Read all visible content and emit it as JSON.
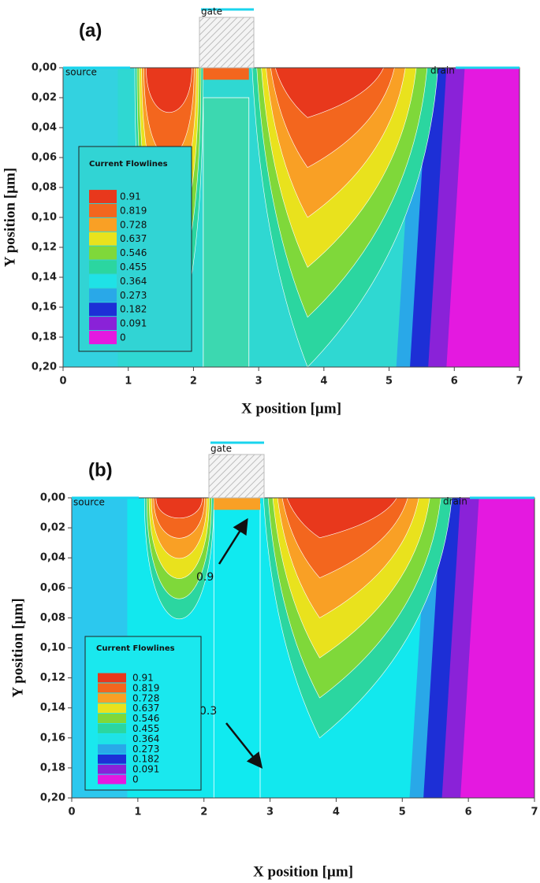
{
  "chart_data": [
    {
      "type": "contour",
      "panel_label": "(a)",
      "xlabel": "X position [µm]",
      "ylabel": "Y position [µm]",
      "xlim": [
        0,
        7
      ],
      "ylim": [
        0,
        0.2
      ],
      "y_inverted": true,
      "xticks": [
        0,
        1,
        2,
        3,
        4,
        5,
        6,
        7
      ],
      "yticks": [
        {
          "value": 0,
          "label": "0,00"
        },
        {
          "value": 0.02,
          "label": "0,02"
        },
        {
          "value": 0.04,
          "label": "0,04"
        },
        {
          "value": 0.06,
          "label": "0,06"
        },
        {
          "value": 0.08,
          "label": "0,08"
        },
        {
          "value": 0.1,
          "label": "0,10"
        },
        {
          "value": 0.12,
          "label": "0,12"
        },
        {
          "value": 0.14,
          "label": "0,14"
        },
        {
          "value": 0.16,
          "label": "0,16"
        },
        {
          "value": 0.18,
          "label": "0,18"
        },
        {
          "value": 0.2,
          "label": "0,20"
        }
      ],
      "annotations": [
        "gate",
        "source",
        "drain"
      ],
      "legend": {
        "title": "Current Flowlines",
        "levels": [
          0.91,
          0.819,
          0.728,
          0.637,
          0.546,
          0.455,
          0.364,
          0.273,
          0.182,
          0.091,
          0
        ],
        "colors": [
          "#e8381c",
          "#f3661e",
          "#f9a025",
          "#e9e21d",
          "#7fd83a",
          "#2bd6a0",
          "#1fe2e6",
          "#29a8e8",
          "#1d2fd6",
          "#8a22d8",
          "#e419e0"
        ]
      }
    },
    {
      "type": "contour",
      "panel_label": "(b)",
      "xlabel": "X position [µm]",
      "ylabel": "Y position [µm]",
      "xlim": [
        0,
        7
      ],
      "ylim": [
        0,
        0.2
      ],
      "y_inverted": true,
      "xticks": [
        0,
        1,
        2,
        3,
        4,
        5,
        6,
        7
      ],
      "yticks": [
        {
          "value": 0,
          "label": "0,00"
        },
        {
          "value": 0.02,
          "label": "0,02"
        },
        {
          "value": 0.04,
          "label": "0,04"
        },
        {
          "value": 0.06,
          "label": "0,06"
        },
        {
          "value": 0.08,
          "label": "0,08"
        },
        {
          "value": 0.1,
          "label": "0,10"
        },
        {
          "value": 0.12,
          "label": "0,12"
        },
        {
          "value": 0.14,
          "label": "0,14"
        },
        {
          "value": 0.16,
          "label": "0,16"
        },
        {
          "value": 0.18,
          "label": "0,18"
        },
        {
          "value": 0.2,
          "label": "0,20"
        }
      ],
      "annotations": [
        "gate",
        "source",
        "drain",
        "0.9",
        "0.3"
      ],
      "legend": {
        "title": "Current Flowlines",
        "levels": [
          0.91,
          0.819,
          0.728,
          0.637,
          0.546,
          0.455,
          0.364,
          0.273,
          0.182,
          0.091,
          0
        ],
        "colors": [
          "#e8381c",
          "#f3661e",
          "#f9a025",
          "#e9e21d",
          "#7fd83a",
          "#2bd6a0",
          "#1fe2e6",
          "#29a8e8",
          "#1d2fd6",
          "#8a22d8",
          "#e419e0"
        ]
      }
    }
  ]
}
